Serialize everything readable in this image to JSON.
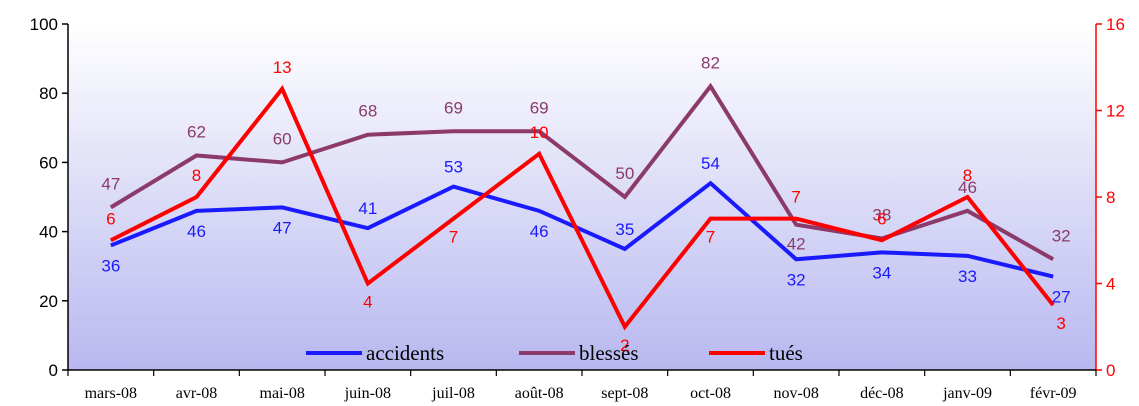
{
  "chart_data": {
    "type": "line",
    "categories": [
      "mars-08",
      "avr-08",
      "mai-08",
      "juin-08",
      "juil-08",
      "août-08",
      "sept-08",
      "oct-08",
      "nov-08",
      "déc-08",
      "janv-09",
      "févr-09"
    ],
    "series": [
      {
        "name": "accidents",
        "axis": "left",
        "color": "#1a1aff",
        "values": [
          36,
          46,
          47,
          41,
          53,
          46,
          35,
          54,
          32,
          34,
          33,
          27
        ],
        "labels": [
          "36",
          "46",
          "47",
          "41",
          "53",
          "46",
          "35",
          "54",
          "32",
          "34",
          "33",
          "27"
        ]
      },
      {
        "name": "blessés",
        "axis": "left",
        "color": "#8b3a6a",
        "values": [
          47,
          62,
          60,
          68,
          69,
          69,
          50,
          82,
          42,
          38,
          46,
          32
        ],
        "labels": [
          "47",
          "62",
          "60",
          "68",
          "69",
          "69",
          "50",
          "82",
          "42",
          "38",
          "46",
          "32"
        ]
      },
      {
        "name": "tués",
        "axis": "right",
        "color": "#ff0000",
        "values": [
          6,
          8,
          13,
          4,
          7,
          10,
          2,
          7,
          7,
          6,
          8,
          3
        ],
        "labels": [
          "6",
          "8",
          "13",
          "4",
          "7",
          "10",
          "2",
          "7",
          "7",
          "6",
          "8",
          "3"
        ]
      }
    ],
    "left_axis": {
      "min": 0,
      "max": 100,
      "ticks": [
        "0",
        "20",
        "40",
        "60",
        "80",
        "100"
      ],
      "tick_values": [
        0,
        20,
        40,
        60,
        80,
        100
      ],
      "color": "#000000"
    },
    "right_axis": {
      "min": 0,
      "max": 16,
      "ticks": [
        "0",
        "4",
        "8",
        "12",
        "16"
      ],
      "tick_values": [
        0,
        4,
        8,
        12,
        16
      ],
      "color": "#ff0000"
    },
    "legend": {
      "placement": "bottom-center",
      "entries": [
        "accidents",
        "blessés",
        "tués"
      ]
    },
    "background": {
      "gradient_top": "#ffffff",
      "gradient_bottom": "#b8b8f0"
    },
    "grid": false
  }
}
